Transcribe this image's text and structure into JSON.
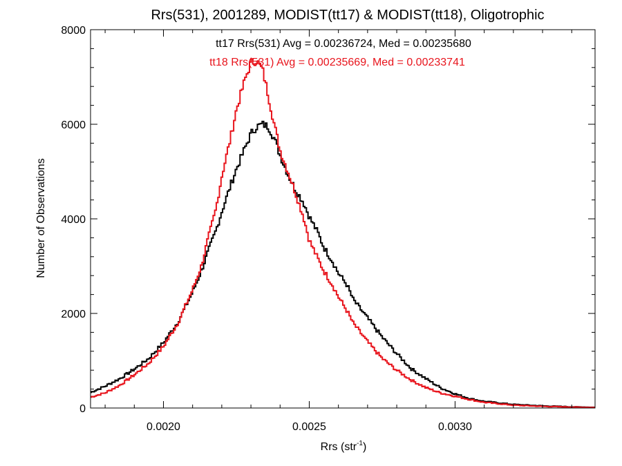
{
  "chart_data": {
    "type": "line",
    "step": true,
    "title": "Rrs(531), 2001289, MODIST(tt17) & MODIST(tt18), Oligotrophic",
    "xlabel": "Rrs (str",
    "xlabel_sup": "-1",
    "xlabel_close": ")",
    "ylabel": "Number of Observations",
    "xlim": [
      0.00175,
      0.00348
    ],
    "ylim": [
      0,
      8000
    ],
    "xticks": [
      0.002,
      0.0025,
      0.003
    ],
    "xtick_labels": [
      "0.0020",
      "0.0025",
      "0.0030"
    ],
    "yticks": [
      0,
      2000,
      4000,
      6000,
      8000
    ],
    "ytick_labels": [
      "0",
      "2000",
      "4000",
      "6000",
      "8000"
    ],
    "grid": false,
    "annotations": [
      {
        "text": "tt17 Rrs(531) Avg = 0.00236724, Med = 0.00235680",
        "color": "#000000"
      },
      {
        "text": "tt18 Rrs(531) Avg = 0.00235669, Med = 0.00233741",
        "color": "#e8141c"
      }
    ],
    "series": [
      {
        "color": "#000000",
        "x": [
          0.00175,
          0.0018,
          0.00185,
          0.0019,
          0.00195,
          0.002,
          0.00205,
          0.0021,
          0.00213,
          0.00215,
          0.00218,
          0.0022,
          0.00223,
          0.00225,
          0.00228,
          0.0023,
          0.00232,
          0.00234,
          0.00236,
          0.00238,
          0.0024,
          0.00243,
          0.00245,
          0.00248,
          0.0025,
          0.00253,
          0.00255,
          0.00258,
          0.0026,
          0.00263,
          0.00265,
          0.0027,
          0.00275,
          0.0028,
          0.00285,
          0.0029,
          0.00295,
          0.003,
          0.00305,
          0.0031,
          0.0032,
          0.0033,
          0.0034,
          0.00348
        ],
        "y": [
          330,
          460,
          620,
          820,
          1050,
          1380,
          1820,
          2450,
          2900,
          3250,
          3750,
          4150,
          4700,
          5050,
          5500,
          5800,
          5950,
          6000,
          5950,
          5700,
          5350,
          4900,
          4650,
          4350,
          4050,
          3700,
          3400,
          3100,
          2850,
          2600,
          2300,
          1900,
          1500,
          1150,
          830,
          620,
          430,
          300,
          200,
          140,
          75,
          45,
          25,
          15
        ]
      },
      {
        "color": "#e8141c",
        "x": [
          0.00175,
          0.0018,
          0.00185,
          0.0019,
          0.00195,
          0.002,
          0.00205,
          0.0021,
          0.00213,
          0.00215,
          0.00218,
          0.0022,
          0.00223,
          0.00225,
          0.00228,
          0.0023,
          0.00232,
          0.00234,
          0.00236,
          0.00238,
          0.0024,
          0.00243,
          0.00245,
          0.00248,
          0.0025,
          0.00253,
          0.00255,
          0.00258,
          0.0026,
          0.00263,
          0.00265,
          0.0027,
          0.00275,
          0.0028,
          0.00285,
          0.0029,
          0.00295,
          0.003,
          0.00305,
          0.0031,
          0.0032,
          0.0033,
          0.0034,
          0.00348
        ],
        "y": [
          230,
          320,
          480,
          700,
          950,
          1300,
          1800,
          2500,
          3000,
          3500,
          4200,
          4900,
          5700,
          6300,
          6950,
          7300,
          7350,
          7150,
          6600,
          6000,
          5450,
          4950,
          4600,
          4050,
          3550,
          3150,
          2900,
          2600,
          2350,
          2050,
          1800,
          1400,
          1050,
          800,
          590,
          430,
          320,
          250,
          180,
          120,
          60,
          35,
          20,
          12
        ]
      }
    ]
  }
}
